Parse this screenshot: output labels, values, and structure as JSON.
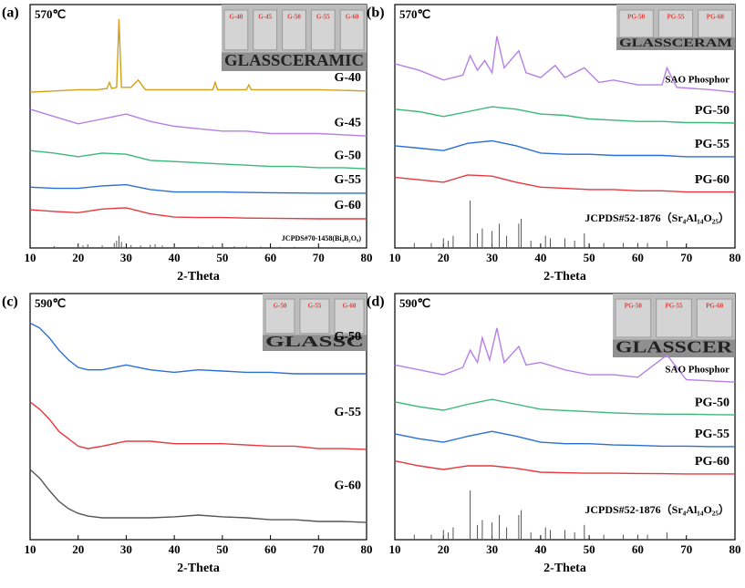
{
  "chart_data": [
    {
      "type": "line",
      "panel": "(a)",
      "subtitle": "570℃",
      "xlabel": "2-Theta",
      "xlim": [
        10,
        80
      ],
      "ylim": [
        0,
        100
      ],
      "xticks": [
        10,
        20,
        30,
        40,
        50,
        60,
        70,
        80
      ],
      "x": [
        10,
        15,
        20,
        25,
        30,
        35,
        40,
        45,
        50,
        55,
        60,
        65,
        70,
        75,
        80
      ],
      "series": [
        {
          "name": "G-40",
          "color": "#d4a017",
          "x": [
            10,
            15,
            20,
            22,
            24,
            26,
            26.5,
            27,
            28,
            28.5,
            29,
            31,
            32.5,
            34,
            40,
            48,
            48.5,
            49,
            55,
            55.5,
            56,
            60,
            70,
            80
          ],
          "values": [
            64,
            64.5,
            65,
            65,
            65,
            65.5,
            68,
            65.5,
            66,
            94,
            66,
            66,
            69,
            65,
            65,
            65,
            68,
            65,
            65,
            67,
            65,
            65,
            65,
            64.5
          ]
        },
        {
          "name": "G-45",
          "color": "#b77fe6",
          "values": [
            57,
            54,
            51,
            53,
            55,
            52,
            50,
            49,
            48,
            48,
            47,
            47,
            47,
            46.5,
            46
          ]
        },
        {
          "name": "G-50",
          "color": "#3cb878",
          "values": [
            40,
            39,
            37.5,
            39,
            38.5,
            36,
            35.5,
            35,
            34.5,
            34,
            33.5,
            33.5,
            33,
            33,
            32.5
          ]
        },
        {
          "name": "G-55",
          "color": "#2a6fd6",
          "values": [
            25,
            24.5,
            24.5,
            25.5,
            26,
            24,
            23,
            23,
            23,
            22.8,
            22.7,
            22.6,
            22.5,
            22.5,
            22.5
          ]
        },
        {
          "name": "G-60",
          "color": "#e8383d",
          "values": [
            15.7,
            15,
            14.5,
            16,
            16.5,
            14,
            12.7,
            12.5,
            12.5,
            12.3,
            12.2,
            12.1,
            12,
            12,
            12
          ]
        }
      ],
      "reference": {
        "name": "JCPDS#70-1458(Bi₄B₂O₉)",
        "color": "#555555",
        "x": [
          15,
          20,
          21,
          22,
          25,
          27.5,
          28,
          28.5,
          29,
          31,
          33,
          35,
          36,
          37.5,
          40,
          45,
          48,
          50,
          52.5,
          55,
          58,
          62,
          65
        ],
        "values": [
          0.8,
          0.8,
          1,
          1.5,
          1,
          2,
          3,
          5,
          2.5,
          1.2,
          1,
          1.3,
          1.5,
          1,
          0.8,
          0.7,
          0.9,
          1,
          0.7,
          0.8,
          0.6,
          0.5,
          0.5
        ]
      },
      "inset": {
        "labels": [
          "G-40",
          "G-45",
          "G-50",
          "G-55",
          "G-60"
        ],
        "text": "GLASSCERAMIC"
      }
    },
    {
      "type": "line",
      "panel": "(b)",
      "subtitle": "570℃",
      "xlabel": "2-Theta",
      "xlim": [
        10,
        80
      ],
      "ylim": [
        0,
        100
      ],
      "xticks": [
        10,
        20,
        30,
        40,
        50,
        60,
        70,
        80
      ],
      "x": [
        10,
        15,
        20,
        25,
        30,
        35,
        40,
        45,
        50,
        55,
        60,
        65,
        70,
        75,
        80
      ],
      "series": [
        {
          "name": "SAO Phosphor",
          "color": "#b77fe6",
          "x": [
            10,
            15,
            20,
            24,
            25.5,
            27,
            28.5,
            30,
            31,
            32.5,
            35.5,
            37,
            40,
            43,
            45,
            49,
            52,
            55,
            60,
            65,
            66,
            68,
            75,
            80
          ],
          "values": [
            75.7,
            73,
            69,
            71,
            79,
            73,
            77,
            72,
            87,
            74,
            81,
            72,
            70,
            75,
            70,
            74,
            68,
            69,
            67,
            67,
            74,
            66,
            65,
            64
          ]
        },
        {
          "name": "PG-50",
          "color": "#3cb878",
          "values": [
            57,
            56,
            54,
            56,
            58,
            57,
            55,
            54.5,
            53,
            52.5,
            52,
            52,
            51.5,
            51.5,
            51.3
          ]
        },
        {
          "name": "PG-55",
          "color": "#2a6fd6",
          "values": [
            42,
            41,
            40,
            43,
            44,
            42,
            39,
            38.5,
            38.5,
            38,
            38,
            38,
            37.5,
            37.5,
            37.5
          ]
        },
        {
          "name": "PG-60",
          "color": "#e8383d",
          "values": [
            29,
            28,
            27,
            30,
            29.5,
            27,
            25,
            24.5,
            24,
            24,
            23.5,
            23.5,
            23,
            23,
            23
          ]
        }
      ],
      "reference": {
        "name": "JCPDS#52-1876（Sr₄Al₁₄O₂₅）",
        "color": "#555555",
        "x": [
          14,
          17.5,
          20,
          21,
          22,
          25.5,
          27,
          28,
          30,
          31.5,
          33,
          35.5,
          36,
          38,
          41,
          42,
          45,
          47,
          49,
          53,
          57,
          60,
          62,
          66
        ],
        "values": [
          2,
          2,
          4,
          3,
          5,
          19.5,
          6,
          8,
          7,
          10,
          5,
          10,
          12,
          3,
          5,
          4,
          4,
          3,
          6,
          2,
          2,
          2,
          2,
          3
        ]
      },
      "inset": {
        "labels": [
          "PG-50",
          "PG-55",
          "PG-60"
        ],
        "text": "GLASSCERAM"
      }
    },
    {
      "type": "line",
      "panel": "(c)",
      "subtitle": "590℃",
      "xlabel": "2-Theta",
      "xlim": [
        10,
        80
      ],
      "ylim": [
        0,
        100
      ],
      "xticks": [
        10,
        20,
        30,
        40,
        50,
        60,
        70,
        80
      ],
      "x": [
        10,
        12,
        14,
        16,
        18,
        20,
        22,
        25,
        30,
        35,
        40,
        45,
        50,
        55,
        60,
        65,
        70,
        75,
        80
      ],
      "series": [
        {
          "name": "G-50",
          "color": "#2a6fd6",
          "values": [
            88,
            86,
            82,
            77,
            73,
            70,
            69,
            69,
            71,
            69,
            68,
            69,
            68.5,
            68,
            68,
            67.4,
            67.4,
            67.4,
            67.4
          ]
        },
        {
          "name": "G-55",
          "color": "#e8383d",
          "values": [
            56,
            53,
            49,
            44,
            41,
            38,
            37,
            38,
            40,
            40,
            39,
            39,
            39,
            38.5,
            38,
            38,
            37,
            37,
            36.7
          ]
        },
        {
          "name": "G-60",
          "color": "#555555",
          "values": [
            28.5,
            25,
            20,
            15.6,
            12.6,
            10.7,
            9.6,
            8.9,
            8.9,
            8.9,
            9.3,
            10,
            9.3,
            8.9,
            8.1,
            8.1,
            7.4,
            7.4,
            7
          ]
        }
      ],
      "inset": {
        "labels": [
          "G-50",
          "G-55",
          "G-60"
        ],
        "text": "GLASSC"
      }
    },
    {
      "type": "line",
      "panel": "(d)",
      "subtitle": "590℃",
      "xlabel": "2-Theta",
      "xlim": [
        10,
        80
      ],
      "ylim": [
        0,
        100
      ],
      "xticks": [
        10,
        20,
        30,
        40,
        50,
        60,
        70,
        80
      ],
      "x": [
        10,
        15,
        20,
        25,
        30,
        35,
        40,
        45,
        50,
        55,
        60,
        65,
        70,
        75,
        80
      ],
      "series": [
        {
          "name": "SAO Phosphor",
          "color": "#b77fe6",
          "x": [
            10,
            15,
            20,
            24,
            25.5,
            27,
            28,
            29.5,
            31,
            32.5,
            35.5,
            37,
            40,
            45,
            50,
            55,
            60,
            66,
            70,
            80
          ],
          "values": [
            71,
            69,
            67,
            70,
            77,
            72,
            82,
            73,
            86,
            72,
            78.5,
            71,
            72,
            69,
            67,
            67,
            66,
            75,
            65,
            64
          ]
        },
        {
          "name": "PG-50",
          "color": "#3cb878",
          "values": [
            56,
            54,
            52.6,
            55,
            57,
            55,
            53,
            52.5,
            52,
            51.5,
            51.2,
            51,
            51,
            50.8,
            50.7
          ]
        },
        {
          "name": "PG-55",
          "color": "#2a6fd6",
          "values": [
            43,
            41,
            39.6,
            42,
            44,
            42,
            39.6,
            39,
            39,
            38.5,
            38.3,
            38,
            38,
            37.8,
            37.8
          ]
        },
        {
          "name": "PG-60",
          "color": "#e8383d",
          "values": [
            32,
            30,
            28.5,
            30,
            30,
            29,
            27.4,
            27.2,
            27,
            27,
            26.9,
            26.8,
            26.7,
            26.7,
            26.7
          ]
        }
      ],
      "reference": {
        "name": "JCPDS#52-1876（Sr₄Al₁₄O₂₅）",
        "color": "#555555",
        "x": [
          14,
          17.5,
          20,
          21,
          22,
          25.5,
          27,
          28,
          30,
          31.5,
          33,
          35.5,
          36,
          38,
          41,
          42,
          45,
          47,
          49,
          53,
          57,
          60,
          62,
          66
        ],
        "values": [
          2,
          2,
          4,
          3,
          5,
          20,
          6,
          8,
          7,
          10,
          5,
          10,
          12,
          3,
          5,
          4,
          4,
          3,
          6,
          2,
          2,
          2,
          2,
          3
        ]
      },
      "inset": {
        "labels": [
          "PG-50",
          "PG-55",
          "PG-60"
        ],
        "text": "GLASSCER"
      }
    }
  ]
}
